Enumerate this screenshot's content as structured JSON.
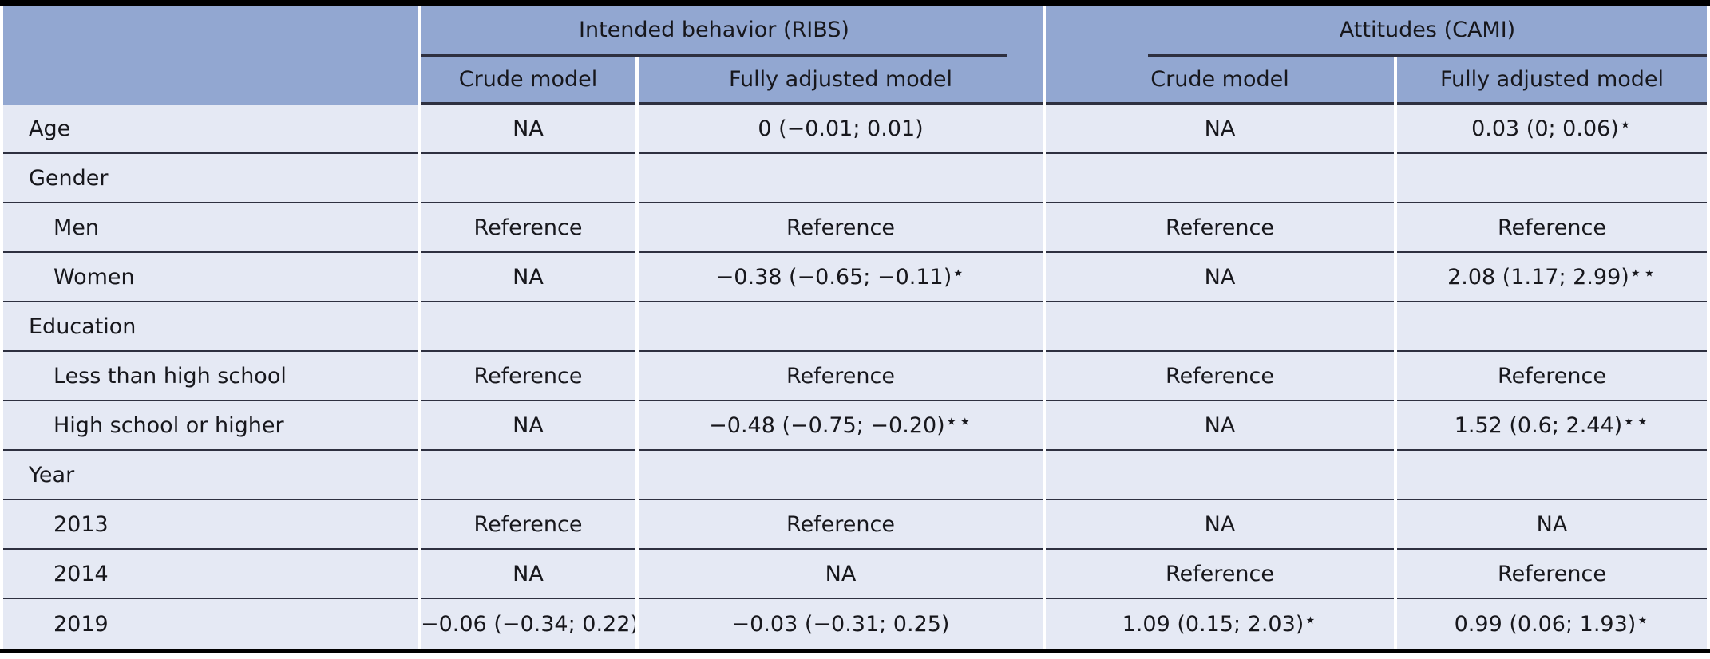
{
  "table": {
    "column_groups": [
      {
        "label": "Intended behavior (RIBS)"
      },
      {
        "label": "Attitudes (CAMI)"
      }
    ],
    "sub_headers": [
      "Crude model",
      "Fully adjusted model",
      "Crude model",
      "Fully adjusted model"
    ],
    "rows": [
      {
        "label": "Age",
        "indent": false,
        "values": [
          "NA",
          "0 (−0.01; 0.01)",
          "NA",
          "0.03 (0; 0.06)*"
        ]
      },
      {
        "label": "Gender",
        "indent": false,
        "values": [
          "",
          "",
          "",
          ""
        ]
      },
      {
        "label": "Men",
        "indent": true,
        "values": [
          "Reference",
          "Reference",
          "Reference",
          "Reference"
        ]
      },
      {
        "label": "Women",
        "indent": true,
        "values": [
          "NA",
          "−0.38 (−0.65; −0.11)*",
          "NA",
          "2.08 (1.17; 2.99)**"
        ]
      },
      {
        "label": "Education",
        "indent": false,
        "values": [
          "",
          "",
          "",
          ""
        ]
      },
      {
        "label": "Less than high school",
        "indent": true,
        "values": [
          "Reference",
          "Reference",
          "Reference",
          "Reference"
        ]
      },
      {
        "label": "High school or higher",
        "indent": true,
        "values": [
          "NA",
          "−0.48 (−0.75; −0.20)**",
          "NA",
          "1.52 (0.6; 2.44)**"
        ]
      },
      {
        "label": "Year",
        "indent": false,
        "values": [
          "",
          "",
          "",
          ""
        ]
      },
      {
        "label": "2013",
        "indent": true,
        "values": [
          "Reference",
          "Reference",
          "NA",
          "NA"
        ]
      },
      {
        "label": "2014",
        "indent": true,
        "values": [
          "NA",
          "NA",
          "Reference",
          "Reference"
        ]
      },
      {
        "label": "2019",
        "indent": true,
        "values": [
          "−0.06 (−0.34; 0.22)",
          "−0.03 (−0.31; 0.25)",
          "1.09 (0.15; 2.03)*",
          "0.99 (0.06; 1.93)*"
        ]
      }
    ],
    "colors": {
      "header_bg": "#92a7d1",
      "row_bg": "#e5e9f4",
      "rule": "#2e3040",
      "frame": "#000000"
    }
  }
}
